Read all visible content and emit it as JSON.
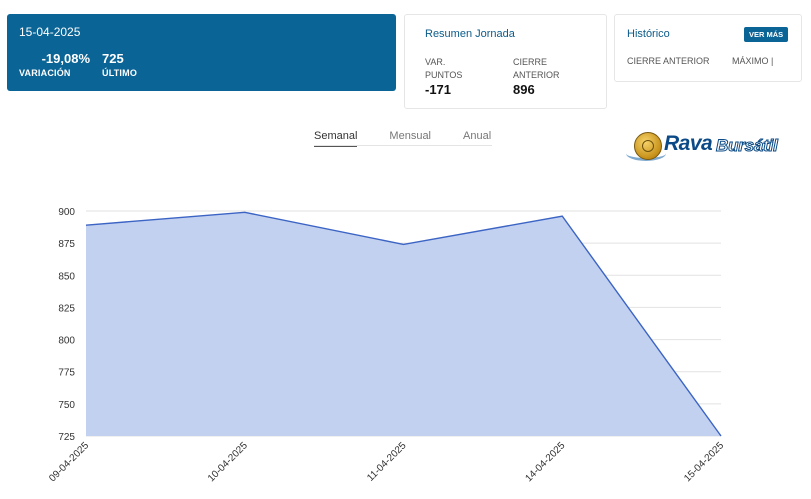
{
  "summary": {
    "date": "15-04-2025",
    "variation_value": "-19,08%",
    "variation_label": "VARIACIÓN",
    "last_value": "725",
    "last_label": "ÚLTIMO"
  },
  "resumen": {
    "title": "Resumen Jornada",
    "var_puntos_label": "VAR. PUNTOS",
    "var_puntos_value": "-171",
    "cierre_anterior_label": "CIERRE ANTERIOR",
    "cierre_anterior_value": "896"
  },
  "historico": {
    "title": "Histórico",
    "ver_mas_label": "VER MÁS",
    "col1": "CIERRE ANTERIOR",
    "col2": "MÁXIMO |"
  },
  "tabs": [
    {
      "label": "Semanal",
      "active": true
    },
    {
      "label": "Mensual",
      "active": false
    },
    {
      "label": "Anual",
      "active": false
    }
  ],
  "logo": {
    "word1": "Rava",
    "word2": "Bursátil"
  },
  "colors": {
    "brand": "#0b6496",
    "area_fill": "#c3d1f0",
    "line": "#3b64c4"
  },
  "chart_data": {
    "type": "area",
    "categories": [
      "09-04-2025",
      "10-04-2025",
      "11-04-2025",
      "14-04-2025",
      "15-04-2025"
    ],
    "values": [
      889,
      899,
      874,
      896,
      725
    ],
    "ylim": [
      725,
      900
    ],
    "yticks": [
      900,
      875,
      850,
      825,
      800,
      775,
      750,
      725
    ],
    "grid": true
  }
}
